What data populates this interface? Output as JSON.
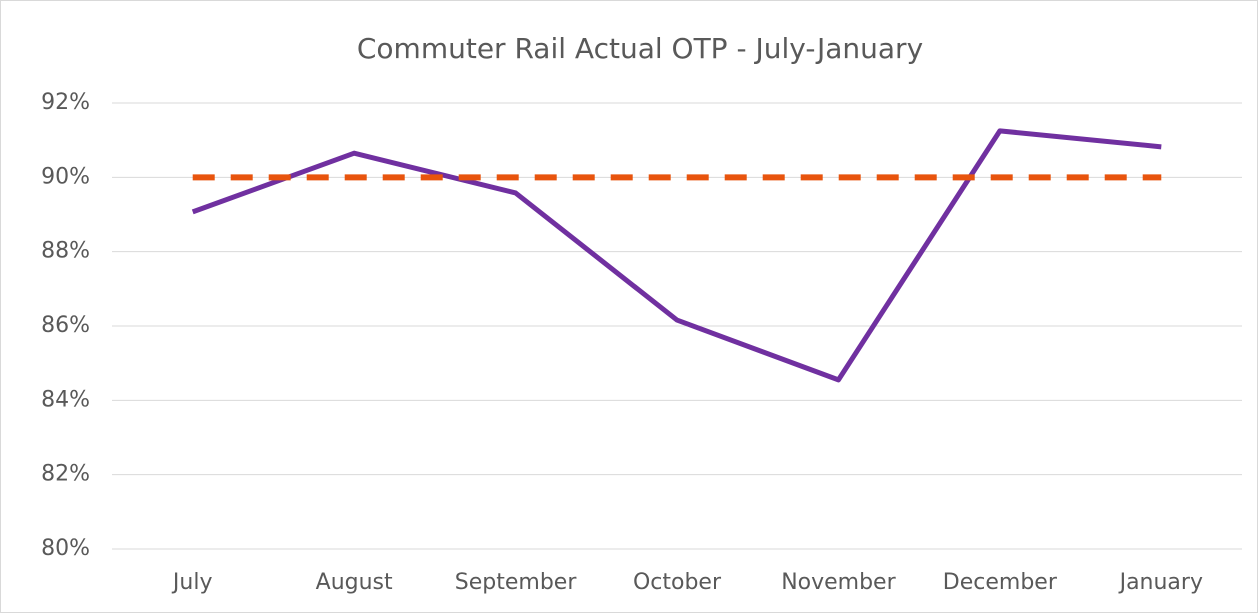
{
  "chart_data": {
    "type": "line",
    "title": "Commuter Rail Actual OTP - July-January",
    "categories": [
      "July",
      "August",
      "September",
      "October",
      "November",
      "December",
      "January"
    ],
    "series": [
      {
        "color": "#7030a0",
        "dashed": false,
        "values": [
          89.07,
          90.65,
          89.58,
          86.16,
          84.55,
          91.25,
          90.82
        ]
      },
      {
        "color": "#e8540d",
        "dashed": true,
        "values": [
          90,
          90,
          90,
          90,
          90,
          90,
          90
        ]
      }
    ],
    "ylim": [
      80,
      92
    ],
    "yticks": [
      {
        "value": 80,
        "label": "80%"
      },
      {
        "value": 82,
        "label": "82%"
      },
      {
        "value": 84,
        "label": "84%"
      },
      {
        "value": 86,
        "label": "86%"
      },
      {
        "value": 88,
        "label": "88%"
      },
      {
        "value": 90,
        "label": "90%"
      },
      {
        "value": 92,
        "label": "92%"
      }
    ],
    "grid": true
  }
}
